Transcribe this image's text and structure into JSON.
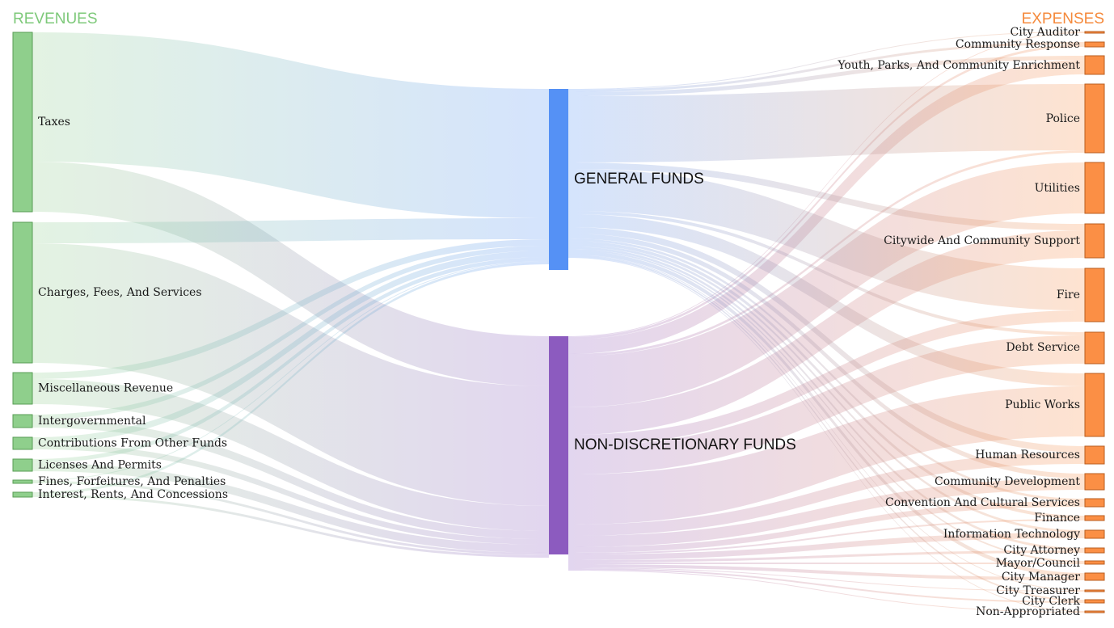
{
  "headers": {
    "revenues": "REVENUES",
    "expenses": "EXPENSES"
  },
  "colors": {
    "revenue_header": "#7ec97a",
    "expense_header": "#f58a3c",
    "general_funds": "#5591f5",
    "non_discretionary_funds": "#8c5bbf",
    "revenue_node": "#8fcf8c",
    "expense_node": "#fb8f45"
  },
  "revenues": [
    "Taxes",
    "Charges, Fees, And Services",
    "Miscellaneous Revenue",
    "Intergovernmental",
    "Contributions From Other Funds",
    "Licenses And Permits",
    "Fines, Forfeitures, And Penalties",
    "Interest, Rents, And Concessions"
  ],
  "funds": [
    "GENERAL FUNDS",
    "NON-DISCRETIONARY FUNDS"
  ],
  "expenses": [
    "City Auditor",
    "Community Response",
    "Youth, Parks, And Community Enrichment",
    "Police",
    "Utilities",
    "Citywide And Community Support",
    "Fire",
    "Debt Service",
    "Public Works",
    "Human Resources",
    "Community Development",
    "Convention And Cultural Services",
    "Finance",
    "Information Technology",
    "City Attorney",
    "Mayor/Council",
    "City Manager",
    "City Treasurer",
    "City Clerk",
    "Non-Appropriated"
  ]
}
